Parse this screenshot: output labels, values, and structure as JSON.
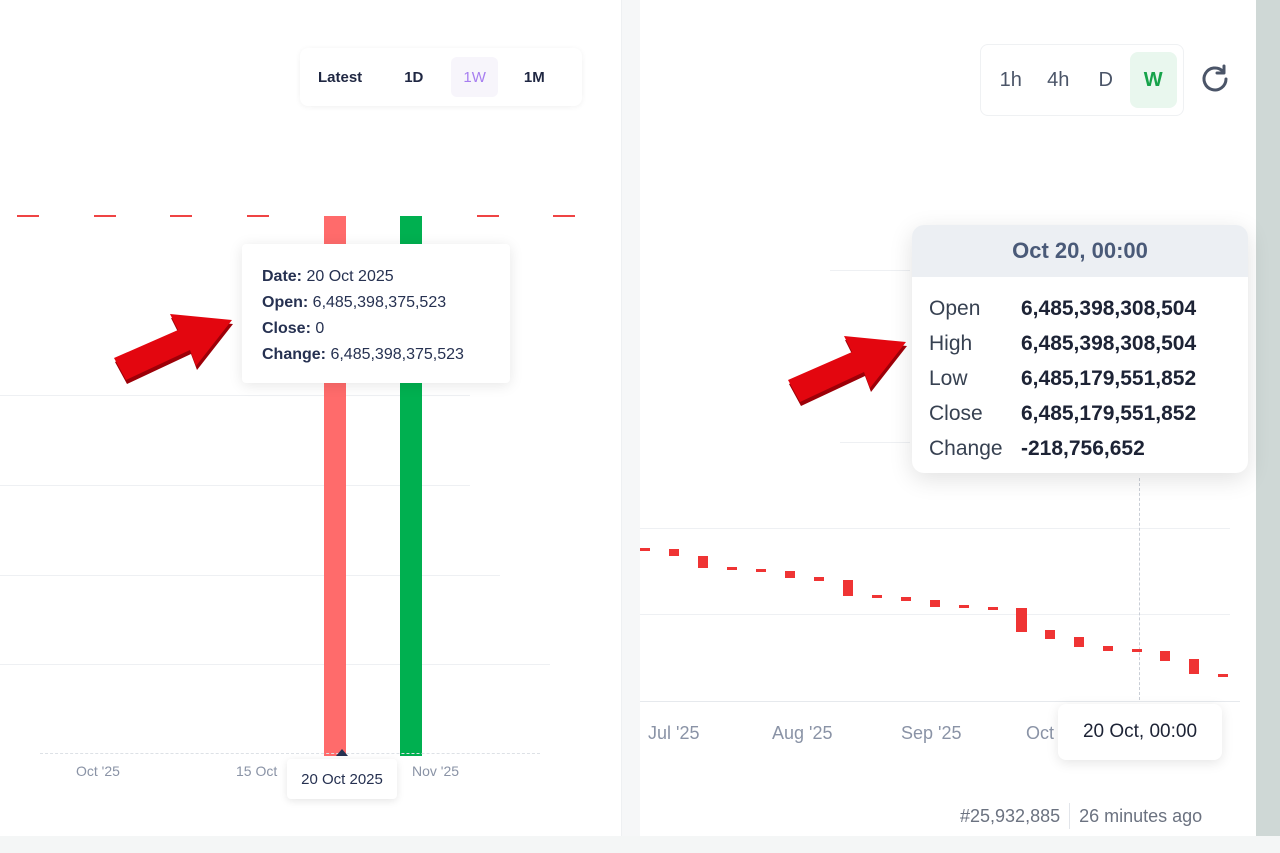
{
  "left": {
    "timeframes": [
      {
        "label": "Latest",
        "active": false
      },
      {
        "label": "1D",
        "active": false
      },
      {
        "label": "1W",
        "active": true
      },
      {
        "label": "1M",
        "active": false
      }
    ],
    "tooltip": {
      "date_label": "Date:",
      "date_value": " 20 Oct 2025",
      "open_label": "Open:",
      "open_value": " 6,485,398,375,523",
      "close_label": "Close:",
      "close_value": " 0",
      "change_label": "Change:",
      "change_value": " 6,485,398,375,523"
    },
    "x_ticks": [
      "Oct '25",
      "15 Oct",
      "Nov '25"
    ],
    "crosshair_date": "20 Oct 2025",
    "colors": {
      "up": "#00b050",
      "down": "#ff6b6b",
      "reference_line": "#ef4444"
    }
  },
  "right": {
    "resolutions": [
      {
        "label": "1h",
        "active": false
      },
      {
        "label": "4h",
        "active": false
      },
      {
        "label": "D",
        "active": false
      },
      {
        "label": "W",
        "active": true
      }
    ],
    "refresh_icon": "refresh-icon",
    "tooltip": {
      "title": "Oct 20, 00:00",
      "rows": [
        {
          "label": "Open",
          "value": "6,485,398,308,504"
        },
        {
          "label": "High",
          "value": "6,485,398,308,504"
        },
        {
          "label": "Low",
          "value": "6,485,179,551,852"
        },
        {
          "label": "Close",
          "value": "6,485,179,551,852"
        },
        {
          "label": "Change",
          "value": "-218,756,652"
        }
      ]
    },
    "x_ticks": [
      "Jul '25",
      "Aug '25",
      "Sep '25",
      "Oct"
    ],
    "crosshair_date": "20 Oct, 00:00",
    "footer": {
      "block": "#25,932,885",
      "age": "26 minutes ago"
    },
    "colors": {
      "down": "#ef3434",
      "active_bg": "#e9f7ee",
      "active_text": "#16a34a"
    }
  },
  "annotations": {
    "arrow_color": "#e3060f"
  }
}
